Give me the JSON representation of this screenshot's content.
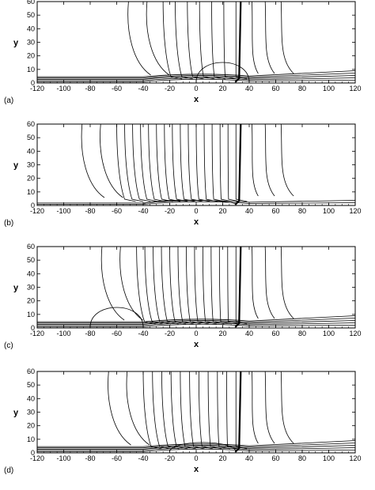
{
  "chart_data": [
    {
      "type": "contour",
      "panel_label": "(a)",
      "xlabel": "x",
      "ylabel": "y",
      "xlim": [
        -120,
        120
      ],
      "ylim": [
        0,
        60
      ],
      "xticks": [
        -120,
        -100,
        -80,
        -60,
        -40,
        -20,
        0,
        20,
        40,
        60,
        80,
        100,
        120
      ],
      "yticks": [
        0,
        10,
        20,
        30,
        40,
        50,
        60
      ],
      "features": {
        "shock_x": 33,
        "fan_left_x": -25,
        "fan_right_x": 30,
        "fan_count": 7,
        "boundary_layer": "thick",
        "bubble": {
          "x": [
            0,
            40
          ],
          "y_max": 20
        }
      }
    },
    {
      "type": "contour",
      "panel_label": "(b)",
      "xlabel": "x",
      "ylabel": "y",
      "xlim": [
        -120,
        120
      ],
      "ylim": [
        0,
        60
      ],
      "xticks": [
        -120,
        -100,
        -80,
        -60,
        -40,
        -20,
        0,
        20,
        40,
        60,
        80,
        100,
        120
      ],
      "yticks": [
        0,
        10,
        20,
        30,
        40,
        50,
        60
      ],
      "features": {
        "shock_x": 33,
        "fan_left_x": -60,
        "fan_right_x": 30,
        "fan_count": 16,
        "boundary_layer": "thin",
        "bubble": {
          "x": [
            -40,
            30
          ],
          "y_max": 5
        }
      }
    },
    {
      "type": "contour",
      "panel_label": "(c)",
      "xlabel": "x",
      "ylabel": "y",
      "xlim": [
        -120,
        120
      ],
      "ylim": [
        0,
        60
      ],
      "xticks": [
        -120,
        -100,
        -80,
        -60,
        -40,
        -20,
        0,
        20,
        40,
        60,
        80,
        100,
        120
      ],
      "yticks": [
        0,
        10,
        20,
        30,
        40,
        50,
        60
      ],
      "features": {
        "shock_x": 33,
        "fan_left_x": -45,
        "fan_right_x": 30,
        "fan_count": 13,
        "boundary_layer": "thick",
        "bubble": {
          "x": [
            -80,
            -40
          ],
          "y_max": 20
        }
      }
    },
    {
      "type": "contour",
      "panel_label": "(d)",
      "xlabel": "x",
      "ylabel": "y",
      "xlim": [
        -120,
        120
      ],
      "ylim": [
        0,
        60
      ],
      "xticks": [
        -120,
        -100,
        -80,
        -60,
        -40,
        -20,
        0,
        20,
        40,
        60,
        80,
        100,
        120
      ],
      "yticks": [
        0,
        10,
        20,
        30,
        40,
        50,
        60
      ],
      "features": {
        "shock_x": 33,
        "fan_left_x": -40,
        "fan_right_x": 30,
        "fan_count": 11,
        "boundary_layer": "thick",
        "bubble": {
          "x": [
            -20,
            30
          ],
          "y_max": 10
        }
      }
    }
  ]
}
